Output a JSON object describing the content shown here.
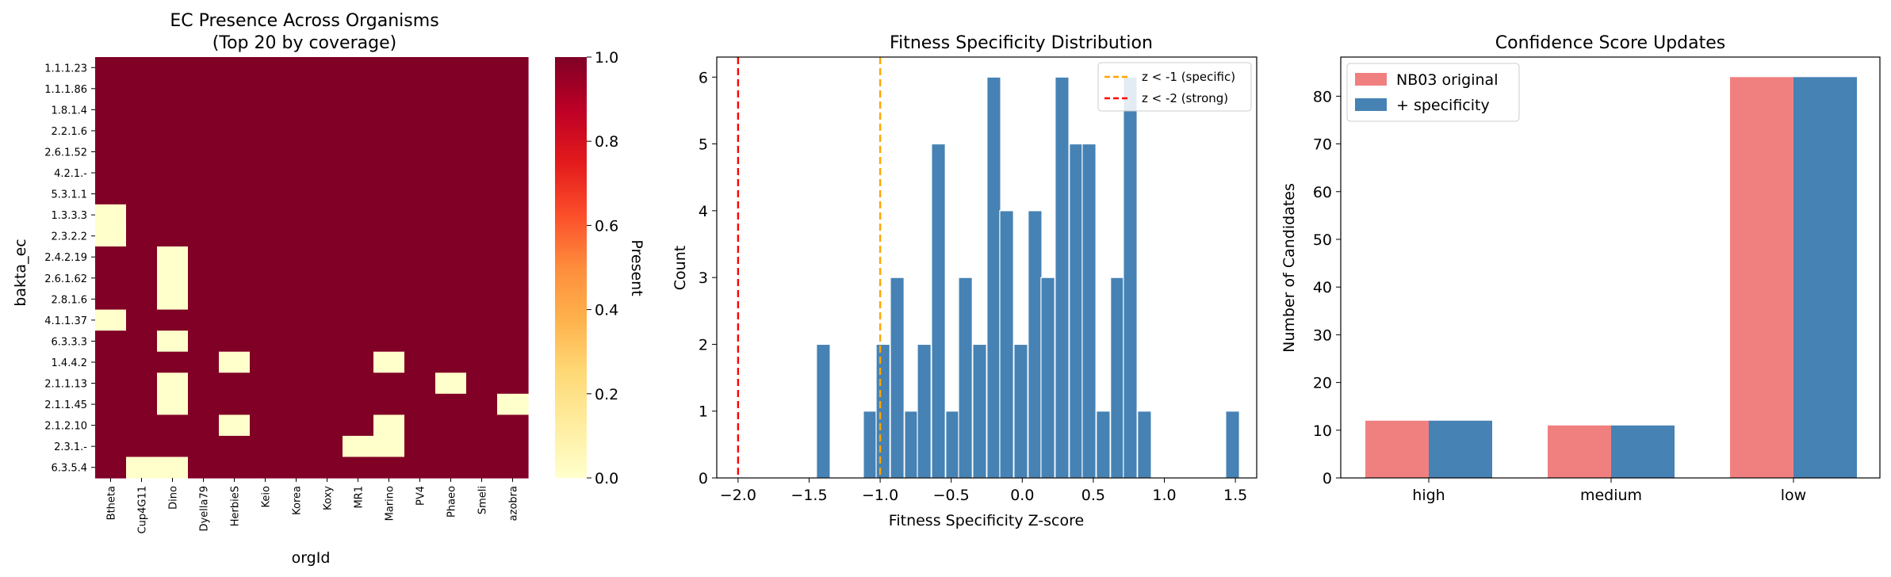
{
  "chart_data": [
    {
      "type": "heatmap",
      "title": "EC Presence Across Organisms",
      "subtitle": "(Top 20 by coverage)",
      "xlabel": "orgId",
      "ylabel": "bakta_ec",
      "colorbar_label": "Present",
      "colorbar_ticks": [
        "0.0",
        "0.2",
        "0.4",
        "0.6",
        "0.8",
        "1.0"
      ],
      "colors": {
        "present": "#800026",
        "absent": "#ffffcc"
      },
      "x": [
        "Btheta",
        "Cup4G11",
        "Dino",
        "Dyella79",
        "HerbieS",
        "Keio",
        "Korea",
        "Koxy",
        "MR1",
        "Marino",
        "PV4",
        "Phaeo",
        "Smeli",
        "azobra"
      ],
      "y": [
        "1.1.1.23",
        "1.1.1.86",
        "1.8.1.4",
        "2.2.1.6",
        "2.6.1.52",
        "4.2.1.-",
        "5.3.1.1",
        "1.3.3.3",
        "2.3.2.2",
        "2.4.2.19",
        "2.6.1.62",
        "2.8.1.6",
        "4.1.1.37",
        "6.3.3.3",
        "1.4.4.2",
        "2.1.1.13",
        "2.1.1.45",
        "2.1.2.10",
        "2.3.1.-",
        "6.3.5.4"
      ],
      "values": [
        [
          1,
          1,
          1,
          1,
          1,
          1,
          1,
          1,
          1,
          1,
          1,
          1,
          1,
          1
        ],
        [
          1,
          1,
          1,
          1,
          1,
          1,
          1,
          1,
          1,
          1,
          1,
          1,
          1,
          1
        ],
        [
          1,
          1,
          1,
          1,
          1,
          1,
          1,
          1,
          1,
          1,
          1,
          1,
          1,
          1
        ],
        [
          1,
          1,
          1,
          1,
          1,
          1,
          1,
          1,
          1,
          1,
          1,
          1,
          1,
          1
        ],
        [
          1,
          1,
          1,
          1,
          1,
          1,
          1,
          1,
          1,
          1,
          1,
          1,
          1,
          1
        ],
        [
          1,
          1,
          1,
          1,
          1,
          1,
          1,
          1,
          1,
          1,
          1,
          1,
          1,
          1
        ],
        [
          1,
          1,
          1,
          1,
          1,
          1,
          1,
          1,
          1,
          1,
          1,
          1,
          1,
          1
        ],
        [
          0,
          1,
          1,
          1,
          1,
          1,
          1,
          1,
          1,
          1,
          1,
          1,
          1,
          1
        ],
        [
          0,
          1,
          1,
          1,
          1,
          1,
          1,
          1,
          1,
          1,
          1,
          1,
          1,
          1
        ],
        [
          1,
          1,
          0,
          1,
          1,
          1,
          1,
          1,
          1,
          1,
          1,
          1,
          1,
          1
        ],
        [
          1,
          1,
          0,
          1,
          1,
          1,
          1,
          1,
          1,
          1,
          1,
          1,
          1,
          1
        ],
        [
          1,
          1,
          0,
          1,
          1,
          1,
          1,
          1,
          1,
          1,
          1,
          1,
          1,
          1
        ],
        [
          0,
          1,
          1,
          1,
          1,
          1,
          1,
          1,
          1,
          1,
          1,
          1,
          1,
          1
        ],
        [
          1,
          1,
          0,
          1,
          1,
          1,
          1,
          1,
          1,
          1,
          1,
          1,
          1,
          1
        ],
        [
          1,
          1,
          1,
          1,
          0,
          1,
          1,
          1,
          1,
          0,
          1,
          1,
          1,
          1
        ],
        [
          1,
          1,
          0,
          1,
          1,
          1,
          1,
          1,
          1,
          1,
          1,
          0,
          1,
          1
        ],
        [
          1,
          1,
          0,
          1,
          1,
          1,
          1,
          1,
          1,
          1,
          1,
          1,
          1,
          0
        ],
        [
          1,
          1,
          1,
          1,
          0,
          1,
          1,
          1,
          1,
          0,
          1,
          1,
          1,
          1
        ],
        [
          1,
          1,
          1,
          1,
          1,
          1,
          1,
          1,
          0,
          0,
          1,
          1,
          1,
          1
        ],
        [
          1,
          0,
          0,
          1,
          1,
          1,
          1,
          1,
          1,
          1,
          1,
          1,
          1,
          1
        ]
      ],
      "vmin": 0,
      "vmax": 1
    },
    {
      "type": "bar",
      "title": "Fitness Specificity Distribution",
      "xlabel": "Fitness Specificity Z-score",
      "ylabel": "Count",
      "xlim": [
        -2.15,
        1.65
      ],
      "ylim": [
        0,
        6.3
      ],
      "xticks": [
        "−2.0",
        "−1.5",
        "−1.0",
        "−0.5",
        "0.0",
        "0.5",
        "1.0",
        "1.5"
      ],
      "yticks": [
        "0",
        "1",
        "2",
        "3",
        "4",
        "5",
        "6"
      ],
      "bar_color": "#4682b4",
      "bin_width": 0.0965,
      "bins": [
        {
          "x": -1.4,
          "count": 2
        },
        {
          "x": -1.07,
          "count": 1
        },
        {
          "x": -0.98,
          "count": 2
        },
        {
          "x": -0.88,
          "count": 3
        },
        {
          "x": -0.78,
          "count": 1
        },
        {
          "x": -0.69,
          "count": 2
        },
        {
          "x": -0.59,
          "count": 5
        },
        {
          "x": -0.49,
          "count": 1
        },
        {
          "x": -0.4,
          "count": 3
        },
        {
          "x": -0.3,
          "count": 2
        },
        {
          "x": -0.2,
          "count": 6
        },
        {
          "x": -0.11,
          "count": 4
        },
        {
          "x": -0.01,
          "count": 2
        },
        {
          "x": 0.09,
          "count": 4
        },
        {
          "x": 0.18,
          "count": 3
        },
        {
          "x": 0.28,
          "count": 6
        },
        {
          "x": 0.38,
          "count": 5
        },
        {
          "x": 0.47,
          "count": 5
        },
        {
          "x": 0.57,
          "count": 1
        },
        {
          "x": 0.67,
          "count": 3
        },
        {
          "x": 0.76,
          "count": 6
        },
        {
          "x": 0.86,
          "count": 1
        },
        {
          "x": 1.48,
          "count": 1
        }
      ],
      "lines": [
        {
          "x": -1.0,
          "label": "z < -1 (specific)",
          "color": "#ffa500"
        },
        {
          "x": -2.0,
          "label": "z < -2 (strong)",
          "color": "#ff0000"
        }
      ],
      "legend_position": "top-right"
    },
    {
      "type": "bar",
      "title": "Confidence Score Updates",
      "xlabel": "",
      "ylabel": "Number of Candidates",
      "categories": [
        "high",
        "medium",
        "low"
      ],
      "series": [
        {
          "name": "NB03 original",
          "values": [
            12,
            11,
            84
          ],
          "color": "#f08080"
        },
        {
          "name": "+ specificity",
          "values": [
            12,
            11,
            84
          ],
          "color": "#4682b4"
        }
      ],
      "ylim": [
        0,
        88.2
      ],
      "yticks": [
        "0",
        "10",
        "20",
        "30",
        "40",
        "50",
        "60",
        "70",
        "80"
      ],
      "legend_position": "top-left"
    }
  ]
}
